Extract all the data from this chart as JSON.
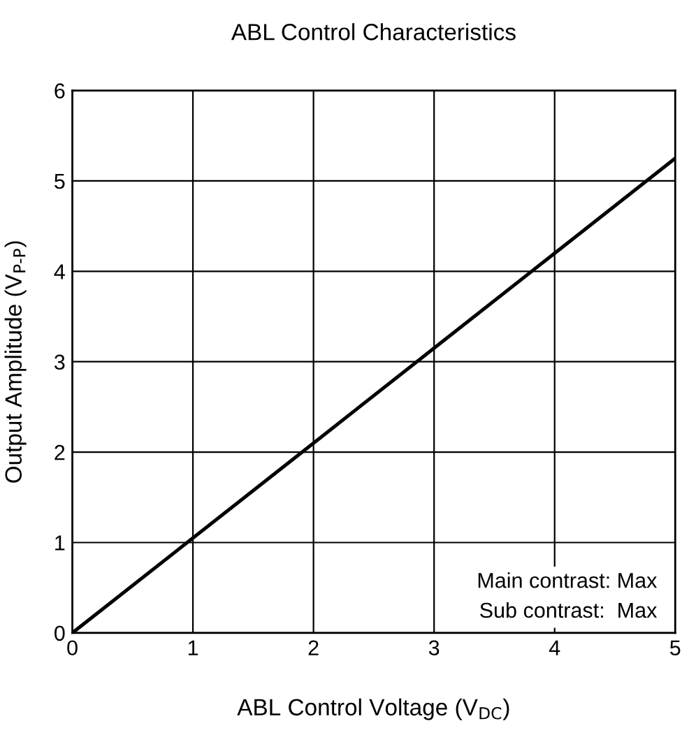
{
  "chart_data": {
    "type": "line",
    "title": "ABL Control Characteristics",
    "xlabel": "ABL Control Voltage (V$_{DC}$)",
    "ylabel": "Output Amplitude (V$_{P-P}$)",
    "x": [
      0,
      1,
      2,
      3,
      4,
      5
    ],
    "series": [
      {
        "color": "#000000",
        "values": [
          0,
          1.05,
          2.1,
          3.15,
          4.2,
          5.25
        ]
      }
    ],
    "xlim": [
      0,
      5
    ],
    "ylim": [
      0,
      6
    ],
    "xticks": [
      0,
      1,
      2,
      3,
      4,
      5
    ],
    "yticks": [
      0,
      1,
      2,
      3,
      4,
      5,
      6
    ],
    "grid": true,
    "legend": false,
    "marker": "none",
    "line_style": "solid",
    "annotations": [
      "Main contrast: Max",
      "Sub contrast:  Max"
    ]
  }
}
